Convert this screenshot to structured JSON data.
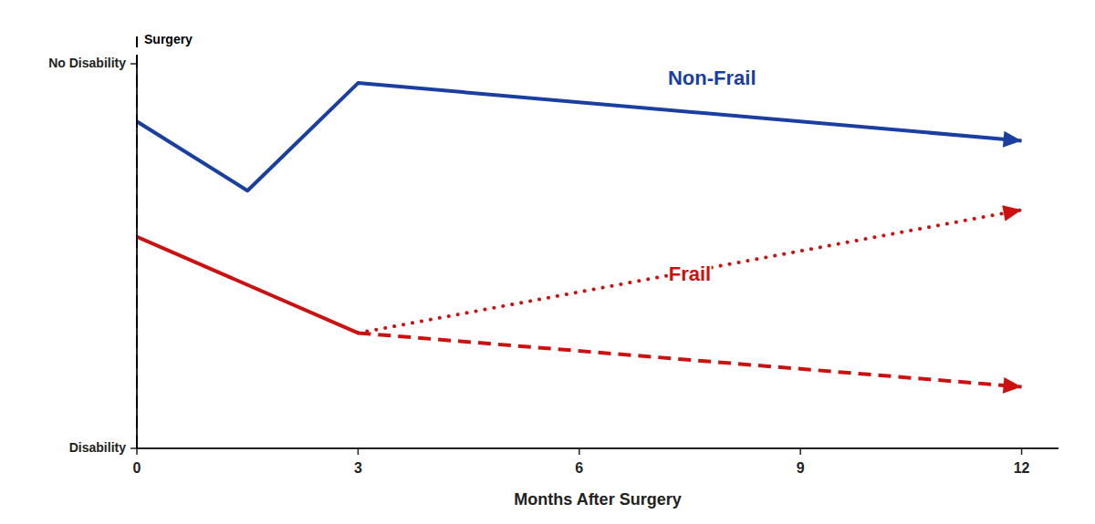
{
  "chart_data": {
    "type": "line",
    "xlabel": "Months After Surgery",
    "xlim": [
      0,
      12.5
    ],
    "xticks": [
      0,
      3,
      6,
      9,
      12
    ],
    "ylim": [
      0,
      10
    ],
    "yticks": [
      {
        "value": 0,
        "label": "Disability"
      },
      {
        "value": 10,
        "label": "No Disability"
      }
    ],
    "series": [
      {
        "x": [
          0,
          1.5,
          3,
          12
        ],
        "values": [
          8.5,
          6.7,
          9.5,
          8.0
        ],
        "color": "#1a3fa0",
        "line_style": "solid",
        "marker": "arrow"
      },
      {
        "x": [
          0,
          3.0
        ],
        "values": [
          5.5,
          3.0
        ],
        "color": "#cc1111",
        "line_style": "solid"
      },
      {
        "x": [
          3.0,
          12
        ],
        "values": [
          3.0,
          6.2
        ],
        "color": "#cc1111",
        "line_style": "dotted",
        "marker": "arrow"
      },
      {
        "x": [
          3.0,
          12
        ],
        "values": [
          3.0,
          1.6
        ],
        "color": "#cc1111",
        "line_style": "dashed",
        "marker": "arrow"
      }
    ],
    "annotations": [
      {
        "text": "Surgery",
        "x": 0,
        "line_style": "dashed"
      },
      {
        "text": "Non-Frail",
        "x": 7.8,
        "y": 9.6,
        "color": "#1a3fa0"
      },
      {
        "text": "Frail",
        "x": 7.5,
        "y": 4.5,
        "color": "#cc1111"
      }
    ]
  }
}
